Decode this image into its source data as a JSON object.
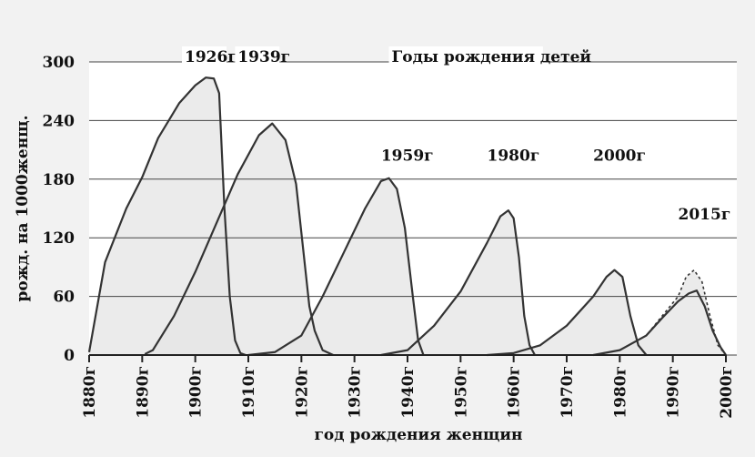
{
  "chart_data": {
    "type": "line",
    "title": "Годы рождения детей",
    "xlabel": "год рождения женщин",
    "ylabel": "рожд. на 1000женщ.",
    "ylim": [
      0,
      300
    ],
    "xlim": [
      1880,
      2000
    ],
    "y_ticks": [
      "0",
      "60",
      "120",
      "180",
      "240",
      "300"
    ],
    "x_ticks": [
      "1880г",
      "1890г",
      "1900г",
      "1910г",
      "1920г",
      "1930г",
      "1940г",
      "1950г",
      "1960г",
      "1970г",
      "1980г",
      "1990г",
      "2000г"
    ],
    "grid": true,
    "series": [
      {
        "name": "1926г",
        "x": [
          1880,
          1883,
          1887,
          1890,
          1893,
          1897,
          1900,
          1902,
          1903.5,
          1904.5,
          1905.5,
          1906.5,
          1907.5,
          1908.5,
          1909.5
        ],
        "values": [
          3,
          95,
          150,
          182,
          222,
          258,
          276,
          284,
          283,
          268,
          150,
          60,
          15,
          2,
          0
        ]
      },
      {
        "name": "1939г",
        "x": [
          1890.5,
          1892,
          1896,
          1900,
          1904,
          1908,
          1912,
          1914.5,
          1917,
          1919,
          1920.5,
          1921.5,
          1922.5,
          1924,
          1926
        ],
        "values": [
          1,
          5,
          40,
          85,
          135,
          185,
          225,
          237,
          220,
          175,
          100,
          50,
          25,
          5,
          0
        ]
      },
      {
        "name": "1959г",
        "x": [
          1910,
          1915,
          1920,
          1924,
          1928,
          1932,
          1935,
          1936.5,
          1938,
          1939.5,
          1941,
          1942,
          1943
        ],
        "values": [
          0,
          3,
          20,
          60,
          105,
          150,
          178,
          181,
          170,
          130,
          60,
          15,
          0
        ]
      },
      {
        "name": "1980г",
        "x": [
          1935,
          1940,
          1945,
          1950,
          1955,
          1957.5,
          1959,
          1960,
          1961,
          1962,
          1963,
          1964
        ],
        "values": [
          0,
          5,
          30,
          65,
          115,
          142,
          148,
          140,
          100,
          40,
          10,
          0
        ]
      },
      {
        "name": "2000г",
        "x": [
          1955,
          1960,
          1965,
          1970,
          1975,
          1977.5,
          1979,
          1980.5,
          1982,
          1983.5,
          1985
        ],
        "values": [
          0,
          2,
          10,
          30,
          60,
          80,
          87,
          80,
          40,
          10,
          0
        ]
      },
      {
        "name": "2015г",
        "x": [
          1975,
          1980,
          1985,
          1988,
          1991,
          1992.5,
          1994,
          1995.5,
          1997,
          1998.5,
          2000
        ],
        "values": [
          0,
          5,
          20,
          40,
          60,
          80,
          87,
          75,
          40,
          10,
          0
        ]
      }
    ],
    "series_2015_solid": {
      "x": [
        1975,
        1980,
        1985,
        1988,
        1991,
        1993,
        1994.5,
        1996,
        1997.5,
        1999,
        2000
      ],
      "values": [
        0,
        5,
        20,
        38,
        55,
        63,
        66,
        50,
        25,
        8,
        0
      ]
    },
    "annotations": [
      {
        "text": "1926г",
        "x": 1898,
        "y": 300
      },
      {
        "text": "1939г",
        "x": 1908,
        "y": 300
      },
      {
        "text": "Годы рождения детей",
        "x": 1937,
        "y": 300
      },
      {
        "text": "1959г",
        "x": 1935,
        "y": 199
      },
      {
        "text": "1980г",
        "x": 1955,
        "y": 199
      },
      {
        "text": "2000г",
        "x": 1975,
        "y": 199
      },
      {
        "text": "2015г",
        "x": 1991,
        "y": 139
      }
    ]
  }
}
